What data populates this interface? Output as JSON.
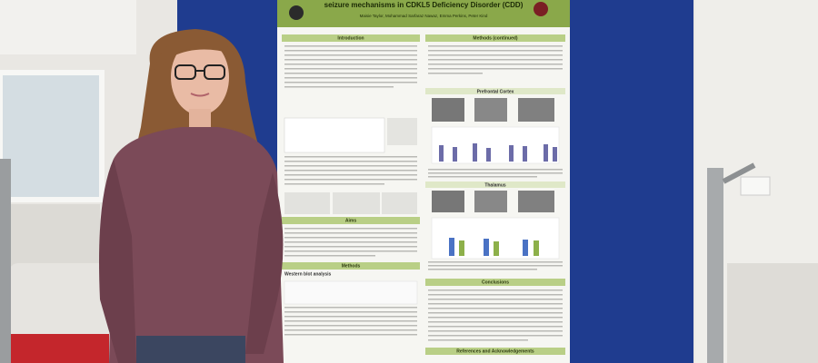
{
  "poster": {
    "title": "seizure mechanisms in CDKL5 Deficiency Disorder (CDD)",
    "authors": "Maisie Taylor, Mohammad Sarfaraz Nawaz, Emma Perkins, Peter Kind",
    "sections": [
      "Introduction",
      "Methods (continued)",
      "Aims",
      "Methods",
      "Conclusions",
      "References and Acknowledgements"
    ],
    "subheadings": [
      "Prefrontal Cortex",
      "Thalamus",
      "Western blot analysis"
    ]
  }
}
